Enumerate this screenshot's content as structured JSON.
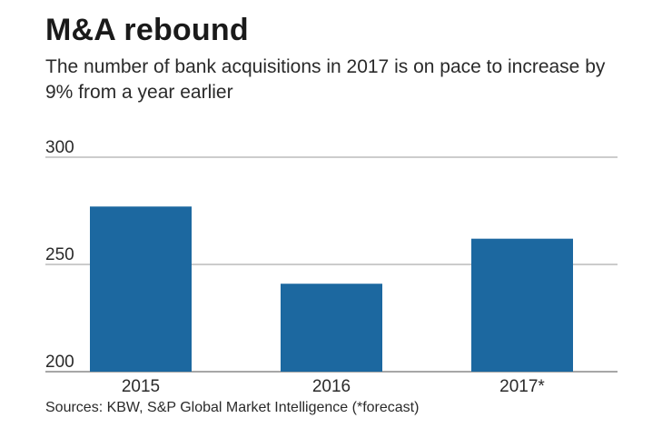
{
  "title": "M&A rebound",
  "subtitle": "The number of bank acquisitions in 2017 is on pace to increase by 9% from a year earlier",
  "source": "Sources: KBW, S&P Global Market Intelligence (*forecast)",
  "colors": {
    "bar": "#1c68a0",
    "grid": "#9a9a9a",
    "axis": "#8a8a8a"
  },
  "chart_data": {
    "type": "bar",
    "categories": [
      "2015",
      "2016",
      "2017*"
    ],
    "values": [
      277,
      241,
      262
    ],
    "title": "M&A rebound",
    "xlabel": "",
    "ylabel": "",
    "ylim": [
      200,
      300
    ],
    "yticks": [
      300,
      250,
      200
    ],
    "grid": true,
    "legend": "none"
  }
}
